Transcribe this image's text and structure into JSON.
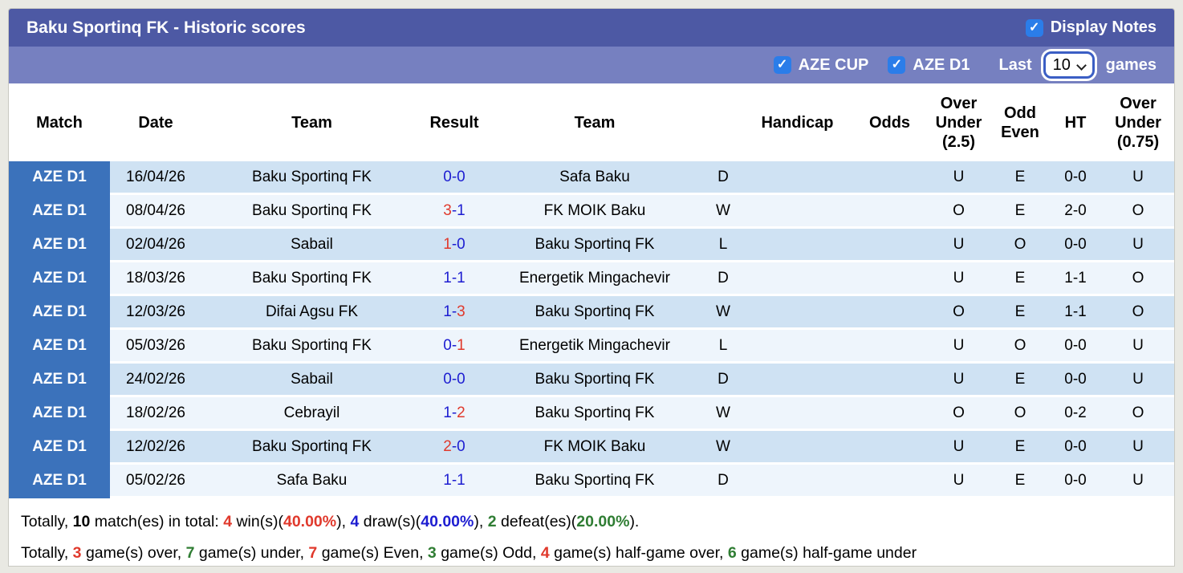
{
  "header": {
    "title": "Baku Sportinq FK - Historic scores",
    "display_notes_label": "Display Notes",
    "display_notes_checked": true
  },
  "filter_bar": {
    "aze_cup_label": "AZE CUP",
    "aze_cup_checked": true,
    "aze_d1_label": "AZE D1",
    "aze_d1_checked": true,
    "last_label": "Last",
    "games_count": "10",
    "games_label": "games"
  },
  "colors": {
    "header_bar": "#4d59a4",
    "filter_bar": "#7680c0",
    "badge_blue": "#3b72bb",
    "row_light_blue": "#cfe2f3",
    "row_pale_blue": "#eef5fc",
    "checkbox_blue": "#2b7de9",
    "text_blue": "#1d1dd1",
    "text_red": "#e0392c",
    "text_green": "#2f7d33"
  },
  "table": {
    "score_separator": "-",
    "headers": {
      "match": "Match",
      "date": "Date",
      "team1": "Team",
      "result": "Result",
      "team2": "Team",
      "outcome": "",
      "handicap": "Handicap",
      "odds": "Odds",
      "over_under_2_5": "Over\nUnder\n(2.5)",
      "odd_even": "Odd\nEven",
      "ht": "HT",
      "over_under_0_75": "Over\nUnder\n(0.75)"
    },
    "rows": [
      {
        "league": "AZE D1",
        "date": "16/04/26",
        "team1": {
          "name": "Baku Sportinq FK",
          "color": "blue"
        },
        "score": {
          "home": "0",
          "away": "0",
          "home_color": "blue",
          "away_color": "blue"
        },
        "team2": {
          "name": "Safa Baku",
          "color": "black"
        },
        "outcome": {
          "letter": "D",
          "color": "blue"
        },
        "handicap": "",
        "odds": "",
        "over_under_2_5": {
          "value": "U",
          "color": "green"
        },
        "odd_even": {
          "value": "E",
          "color": "red"
        },
        "ht": "0-0",
        "over_under_0_75": {
          "value": "U",
          "color": "green"
        }
      },
      {
        "league": "AZE D1",
        "date": "08/04/26",
        "team1": {
          "name": "Baku Sportinq FK",
          "color": "red"
        },
        "score": {
          "home": "3",
          "away": "1",
          "home_color": "red",
          "away_color": "blue"
        },
        "team2": {
          "name": "FK MOIK Baku",
          "color": "black"
        },
        "outcome": {
          "letter": "W",
          "color": "red"
        },
        "handicap": "",
        "odds": "",
        "over_under_2_5": {
          "value": "O",
          "color": "red"
        },
        "odd_even": {
          "value": "E",
          "color": "red"
        },
        "ht": "2-0",
        "over_under_0_75": {
          "value": "O",
          "color": "red"
        }
      },
      {
        "league": "AZE D1",
        "date": "02/04/26",
        "team1": {
          "name": "Sabail",
          "color": "black"
        },
        "score": {
          "home": "1",
          "away": "0",
          "home_color": "red",
          "away_color": "blue"
        },
        "team2": {
          "name": "Baku Sportinq FK",
          "color": "green"
        },
        "outcome": {
          "letter": "L",
          "color": "green"
        },
        "handicap": "",
        "odds": "",
        "over_under_2_5": {
          "value": "U",
          "color": "green"
        },
        "odd_even": {
          "value": "O",
          "color": "green"
        },
        "ht": "0-0",
        "over_under_0_75": {
          "value": "U",
          "color": "green"
        }
      },
      {
        "league": "AZE D1",
        "date": "18/03/26",
        "team1": {
          "name": "Baku Sportinq FK",
          "color": "blue"
        },
        "score": {
          "home": "1",
          "away": "1",
          "home_color": "blue",
          "away_color": "blue"
        },
        "team2": {
          "name": "Energetik Mingachevir",
          "color": "black"
        },
        "outcome": {
          "letter": "D",
          "color": "blue"
        },
        "handicap": "",
        "odds": "",
        "over_under_2_5": {
          "value": "U",
          "color": "green"
        },
        "odd_even": {
          "value": "E",
          "color": "red"
        },
        "ht": "1-1",
        "over_under_0_75": {
          "value": "O",
          "color": "red"
        }
      },
      {
        "league": "AZE D1",
        "date": "12/03/26",
        "team1": {
          "name": "Difai Agsu FK",
          "color": "black"
        },
        "score": {
          "home": "1",
          "away": "3",
          "home_color": "blue",
          "away_color": "red"
        },
        "team2": {
          "name": "Baku Sportinq FK",
          "color": "red"
        },
        "outcome": {
          "letter": "W",
          "color": "red"
        },
        "handicap": "",
        "odds": "",
        "over_under_2_5": {
          "value": "O",
          "color": "red"
        },
        "odd_even": {
          "value": "E",
          "color": "red"
        },
        "ht": "1-1",
        "over_under_0_75": {
          "value": "O",
          "color": "red"
        }
      },
      {
        "league": "AZE D1",
        "date": "05/03/26",
        "team1": {
          "name": "Baku Sportinq FK",
          "color": "green"
        },
        "score": {
          "home": "0",
          "away": "1",
          "home_color": "blue",
          "away_color": "red"
        },
        "team2": {
          "name": "Energetik Mingachevir",
          "color": "black"
        },
        "outcome": {
          "letter": "L",
          "color": "green"
        },
        "handicap": "",
        "odds": "",
        "over_under_2_5": {
          "value": "U",
          "color": "green"
        },
        "odd_even": {
          "value": "O",
          "color": "green"
        },
        "ht": "0-0",
        "over_under_0_75": {
          "value": "U",
          "color": "green"
        }
      },
      {
        "league": "AZE D1",
        "date": "24/02/26",
        "team1": {
          "name": "Sabail",
          "color": "black"
        },
        "score": {
          "home": "0",
          "away": "0",
          "home_color": "blue",
          "away_color": "blue"
        },
        "team2": {
          "name": "Baku Sportinq FK",
          "color": "blue"
        },
        "outcome": {
          "letter": "D",
          "color": "blue"
        },
        "handicap": "",
        "odds": "",
        "over_under_2_5": {
          "value": "U",
          "color": "green"
        },
        "odd_even": {
          "value": "E",
          "color": "red"
        },
        "ht": "0-0",
        "over_under_0_75": {
          "value": "U",
          "color": "green"
        }
      },
      {
        "league": "AZE D1",
        "date": "18/02/26",
        "team1": {
          "name": "Cebrayil",
          "color": "black"
        },
        "score": {
          "home": "1",
          "away": "2",
          "home_color": "blue",
          "away_color": "red"
        },
        "team2": {
          "name": "Baku Sportinq FK",
          "color": "red"
        },
        "outcome": {
          "letter": "W",
          "color": "red"
        },
        "handicap": "",
        "odds": "",
        "over_under_2_5": {
          "value": "O",
          "color": "red"
        },
        "odd_even": {
          "value": "O",
          "color": "green"
        },
        "ht": "0-2",
        "over_under_0_75": {
          "value": "O",
          "color": "red"
        }
      },
      {
        "league": "AZE D1",
        "date": "12/02/26",
        "team1": {
          "name": "Baku Sportinq FK",
          "color": "red"
        },
        "score": {
          "home": "2",
          "away": "0",
          "home_color": "red",
          "away_color": "blue"
        },
        "team2": {
          "name": "FK MOIK Baku",
          "color": "black"
        },
        "outcome": {
          "letter": "W",
          "color": "red"
        },
        "handicap": "",
        "odds": "",
        "over_under_2_5": {
          "value": "U",
          "color": "green"
        },
        "odd_even": {
          "value": "E",
          "color": "red"
        },
        "ht": "0-0",
        "over_under_0_75": {
          "value": "U",
          "color": "green"
        }
      },
      {
        "league": "AZE D1",
        "date": "05/02/26",
        "team1": {
          "name": "Safa Baku",
          "color": "black"
        },
        "score": {
          "home": "1",
          "away": "1",
          "home_color": "blue",
          "away_color": "blue"
        },
        "team2": {
          "name": "Baku Sportinq FK",
          "color": "blue"
        },
        "outcome": {
          "letter": "D",
          "color": "blue"
        },
        "handicap": "",
        "odds": "",
        "over_under_2_5": {
          "value": "U",
          "color": "green"
        },
        "odd_even": {
          "value": "E",
          "color": "red"
        },
        "ht": "0-0",
        "over_under_0_75": {
          "value": "U",
          "color": "green"
        }
      }
    ]
  },
  "footer": {
    "line1": {
      "segments": [
        {
          "text": "Totally, ",
          "color": "black",
          "bold": false
        },
        {
          "text": "10",
          "color": "black",
          "bold": true
        },
        {
          "text": " match(es) in total: ",
          "color": "black",
          "bold": false
        },
        {
          "text": "4",
          "color": "red",
          "bold": true
        },
        {
          "text": " win(s)(",
          "color": "black",
          "bold": false
        },
        {
          "text": "40.00%",
          "color": "red",
          "bold": true
        },
        {
          "text": "), ",
          "color": "black",
          "bold": false
        },
        {
          "text": "4",
          "color": "blue",
          "bold": true
        },
        {
          "text": " draw(s)(",
          "color": "black",
          "bold": false
        },
        {
          "text": "40.00%",
          "color": "blue",
          "bold": true
        },
        {
          "text": "), ",
          "color": "black",
          "bold": false
        },
        {
          "text": "2",
          "color": "green",
          "bold": true
        },
        {
          "text": " defeat(es)(",
          "color": "black",
          "bold": false
        },
        {
          "text": "20.00%",
          "color": "green",
          "bold": true
        },
        {
          "text": ").",
          "color": "black",
          "bold": false
        }
      ]
    },
    "line2": {
      "segments": [
        {
          "text": "Totally, ",
          "color": "black",
          "bold": false
        },
        {
          "text": "3",
          "color": "red",
          "bold": true
        },
        {
          "text": " game(s) over, ",
          "color": "black",
          "bold": false
        },
        {
          "text": "7",
          "color": "green",
          "bold": true
        },
        {
          "text": " game(s) under, ",
          "color": "black",
          "bold": false
        },
        {
          "text": "7",
          "color": "red",
          "bold": true
        },
        {
          "text": " game(s) Even, ",
          "color": "black",
          "bold": false
        },
        {
          "text": "3",
          "color": "green",
          "bold": true
        },
        {
          "text": " game(s) Odd, ",
          "color": "black",
          "bold": false
        },
        {
          "text": "4",
          "color": "red",
          "bold": true
        },
        {
          "text": " game(s) half-game over, ",
          "color": "black",
          "bold": false
        },
        {
          "text": "6",
          "color": "green",
          "bold": true
        },
        {
          "text": " game(s) half-game under",
          "color": "black",
          "bold": false
        }
      ]
    }
  }
}
